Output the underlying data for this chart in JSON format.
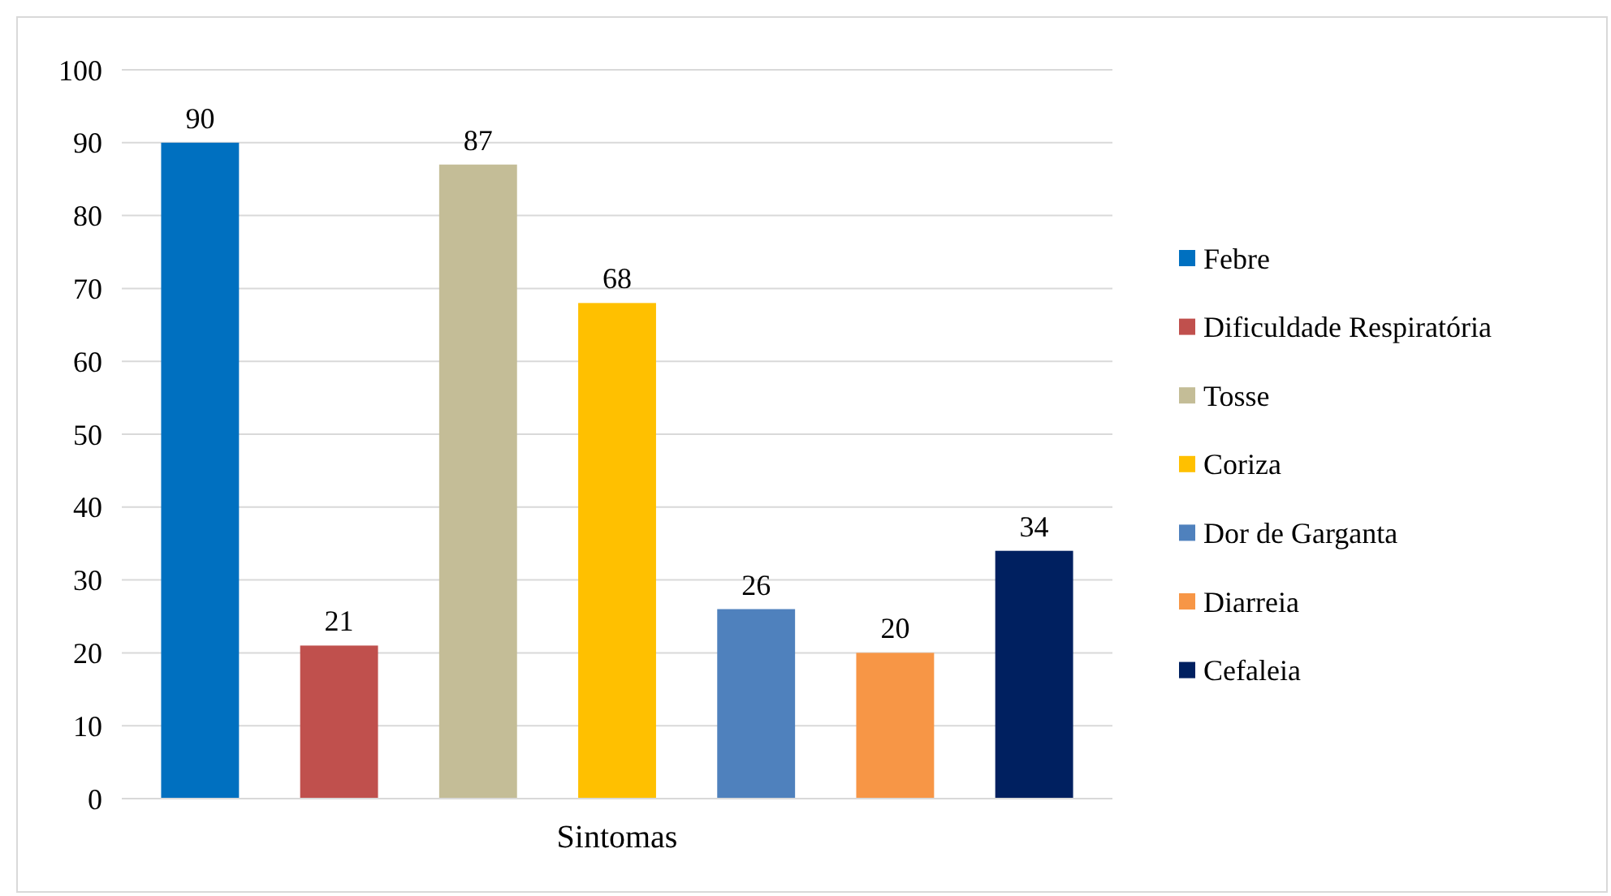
{
  "chart_data": {
    "type": "bar",
    "xlabel": "Sintomas",
    "categories": [
      null
    ],
    "series": [
      {
        "name": "Febre",
        "color": "#0070c0",
        "values": [
          90
        ]
      },
      {
        "name": "Dificuldade Respiratória",
        "color": "#c0504d",
        "values": [
          21
        ]
      },
      {
        "name": "Tosse",
        "color": "#c4bd97",
        "values": [
          87
        ]
      },
      {
        "name": "Coriza",
        "color": "#ffc000",
        "values": [
          68
        ]
      },
      {
        "name": "Dor de Garganta",
        "color": "#4f81bd",
        "values": [
          26
        ]
      },
      {
        "name": "Diarreia",
        "color": "#f79646",
        "values": [
          20
        ]
      },
      {
        "name": "Cefaleia",
        "color": "#002060",
        "values": [
          34
        ]
      }
    ],
    "ylim": [
      0,
      100
    ],
    "yticks": [
      0,
      10,
      20,
      30,
      40,
      50,
      60,
      70,
      80,
      90,
      100
    ],
    "grid": "y",
    "legend": "right",
    "data_labels": true
  }
}
